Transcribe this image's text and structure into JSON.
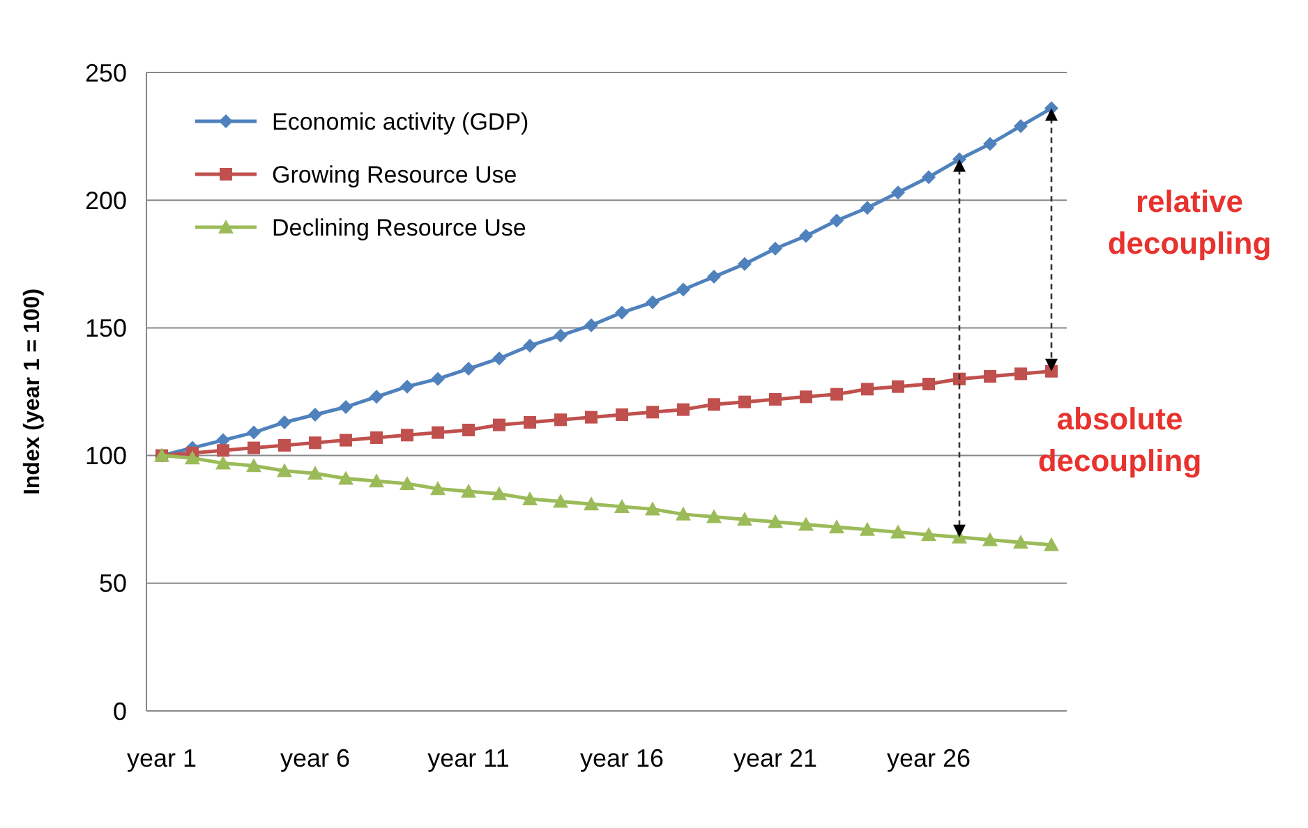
{
  "chart_data": {
    "type": "line",
    "ylabel": "Index (year 1 = 100)",
    "categories": [
      "year 1",
      null,
      null,
      null,
      null,
      "year 6",
      null,
      null,
      null,
      null,
      "year 11",
      null,
      null,
      null,
      null,
      "year 16",
      null,
      null,
      null,
      null,
      "year 21",
      null,
      null,
      null,
      null,
      "year 26",
      null,
      null,
      null,
      null
    ],
    "series": [
      {
        "name": "Economic activity (GDP)",
        "color": "#4f81bd",
        "marker": "diamond",
        "values": [
          100,
          103,
          106,
          109,
          113,
          116,
          119,
          123,
          127,
          130,
          134,
          138,
          143,
          147,
          151,
          156,
          160,
          165,
          170,
          175,
          181,
          186,
          192,
          197,
          203,
          209,
          216,
          222,
          229,
          236
        ]
      },
      {
        "name": "Growing Resource Use",
        "color": "#c0504d",
        "marker": "square",
        "values": [
          100,
          101,
          102,
          103,
          104,
          105,
          106,
          107,
          108,
          109,
          110,
          112,
          113,
          114,
          115,
          116,
          117,
          118,
          120,
          121,
          122,
          123,
          124,
          126,
          127,
          128,
          130,
          131,
          132,
          133
        ]
      },
      {
        "name": "Declining Resource Use",
        "color": "#9bbb59",
        "marker": "triangle",
        "values": [
          100,
          99,
          97,
          96,
          94,
          93,
          91,
          90,
          89,
          87,
          86,
          85,
          83,
          82,
          81,
          80,
          79,
          77,
          76,
          75,
          74,
          73,
          72,
          71,
          70,
          69,
          68,
          67,
          66,
          65
        ]
      }
    ],
    "ylim": [
      0,
      250
    ],
    "yticks": [
      0,
      50,
      100,
      150,
      200,
      250
    ],
    "grid": "y",
    "legend": "top left",
    "annotations": [
      "relative decoupling",
      "absolute decoupling"
    ]
  }
}
